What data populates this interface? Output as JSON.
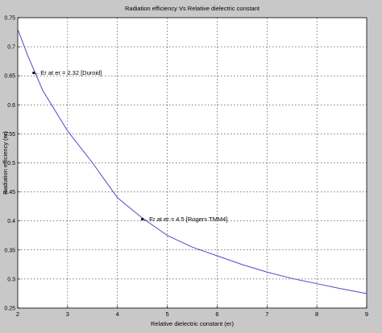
{
  "chart_data": {
    "type": "line",
    "title": "Radiation efficiency Vs Relative dielectric constant",
    "xlabel": "Relative dielectric constant (er)",
    "ylabel": "Radiation efficiency (er)",
    "xlim": [
      2,
      9
    ],
    "ylim": [
      0.25,
      0.75
    ],
    "xticks": [
      2,
      3,
      4,
      5,
      6,
      7,
      8,
      9
    ],
    "yticks": [
      0.25,
      0.3,
      0.35,
      0.4,
      0.45,
      0.5,
      0.55,
      0.6,
      0.65,
      0.7,
      0.75
    ],
    "ytick_labels": [
      "0.25",
      "0.3",
      "0.35",
      "0.4",
      "0.45",
      "0.5",
      "0.55",
      "0.6",
      "0.65",
      "0.7",
      "0.75"
    ],
    "grid": true,
    "series": [
      {
        "x": [
          2.0,
          2.2,
          2.5,
          3.0,
          3.5,
          4.0,
          4.5,
          5.0,
          5.5,
          6.0,
          6.5,
          7.0,
          7.5,
          8.0,
          8.5,
          9.0
        ],
        "y": [
          0.73,
          0.685,
          0.625,
          0.555,
          0.5,
          0.44,
          0.405,
          0.375,
          0.355,
          0.34,
          0.325,
          0.312,
          0.301,
          0.292,
          0.283,
          0.275
        ],
        "color": "#4a4ac8"
      }
    ],
    "annotations": [
      {
        "x": 2.32,
        "y": 0.655,
        "text": "←Er at er = 2.32 [Duroid]"
      },
      {
        "x": 4.5,
        "y": 0.403,
        "text": "←Er at er = 4.5 [Rogers TMM4]"
      }
    ],
    "colors": {
      "figure_background": "#c8c8c8",
      "axes_background": "#ffffff",
      "axis": "#000000",
      "grid": "#000000",
      "line": "#4a4ac8",
      "text": "#000000"
    }
  }
}
